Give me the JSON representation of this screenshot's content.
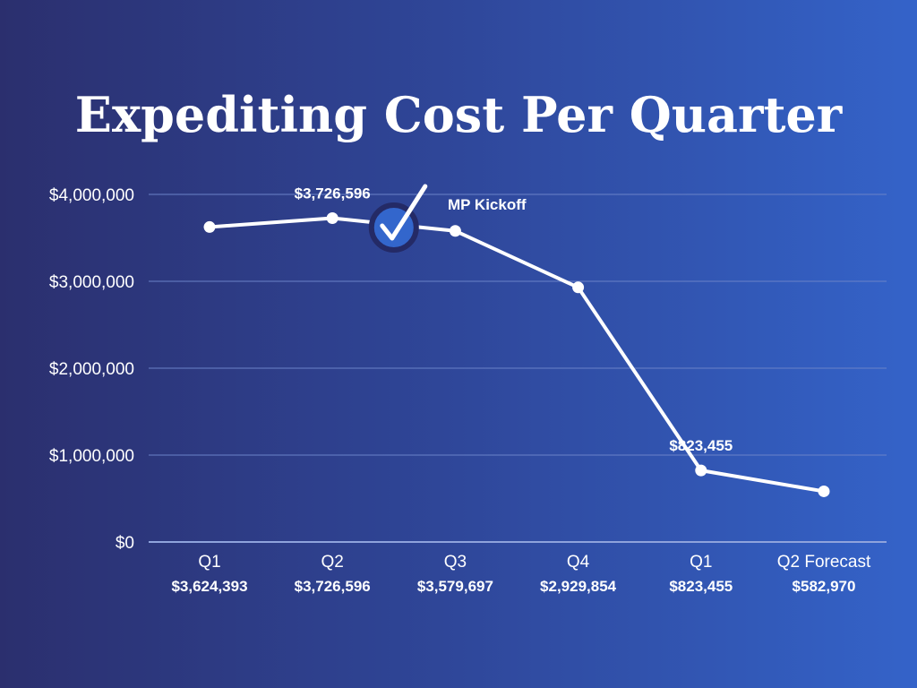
{
  "chart_data": {
    "type": "line",
    "title": "Expediting Cost Per Quarter",
    "categories": [
      "Q1",
      "Q2",
      "Q3",
      "Q4",
      "Q1",
      "Q2 Forecast"
    ],
    "value_labels": [
      "$3,624,393",
      "$3,726,596",
      "$3,579,697",
      "$2,929,854",
      "$823,455",
      "$582,970"
    ],
    "values": [
      3624393,
      3726596,
      3579697,
      2929854,
      823455,
      582970
    ],
    "ylim": [
      0,
      4000000
    ],
    "yticks": [
      0,
      1000000,
      2000000,
      3000000,
      4000000
    ],
    "ytick_labels": [
      "$0",
      "$1,000,000",
      "$2,000,000",
      "$3,000,000",
      "$4,000,000"
    ],
    "grid": true,
    "point_labels": [
      {
        "index": 1,
        "text": "$3,726,596"
      },
      {
        "index": 4,
        "text": "$823,455"
      }
    ],
    "annotation": {
      "text": "MP Kickoff",
      "between": [
        1,
        2
      ],
      "icon": "check-circle-icon"
    },
    "colors": {
      "line": "#ffffff",
      "grid": "#6a82c8",
      "marker_fill": "#3366cc",
      "marker_ring": "#242a66"
    }
  }
}
